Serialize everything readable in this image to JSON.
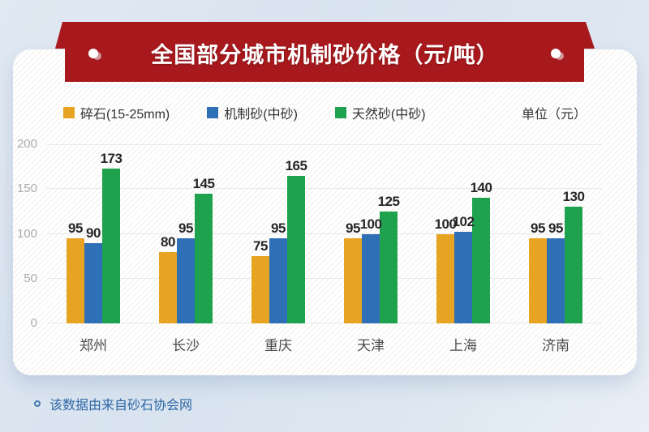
{
  "banner": {
    "title": "全国部分城市机制砂价格（元/吨）"
  },
  "legend": {
    "unit_label": "单位（元）"
  },
  "chart_data": {
    "type": "bar",
    "title": "全国部分城市机制砂价格（元/吨）",
    "categories": [
      "郑州",
      "长沙",
      "重庆",
      "天津",
      "上海",
      "济南"
    ],
    "series": [
      {
        "name": "碎石(15-25mm)",
        "color": "#E6A422",
        "values": [
          95,
          80,
          75,
          95,
          100,
          95
        ]
      },
      {
        "name": "机制砂(中砂)",
        "color": "#2E6FB5",
        "values": [
          90,
          95,
          95,
          100,
          102,
          95
        ]
      },
      {
        "name": "天然砂(中砂)",
        "color": "#1FA24E",
        "values": [
          173,
          145,
          165,
          125,
          140,
          130
        ]
      }
    ],
    "ylim": [
      0,
      200
    ],
    "yticks": [
      0,
      50,
      100,
      150,
      200
    ],
    "grid": true,
    "legend_position": "top",
    "value_labels": true,
    "ylabel": "",
    "xlabel": ""
  },
  "footer": {
    "note": "该数据由来自砂石协会网"
  },
  "colors": {
    "banner_red": "#A8191D",
    "bar_yellow": "#E6A422",
    "bar_blue": "#2E6FB5",
    "bar_green": "#1FA24E",
    "note_blue": "#2E67A4",
    "axis_gray": "#ABACAE",
    "gridline": "#E6E8EA"
  }
}
